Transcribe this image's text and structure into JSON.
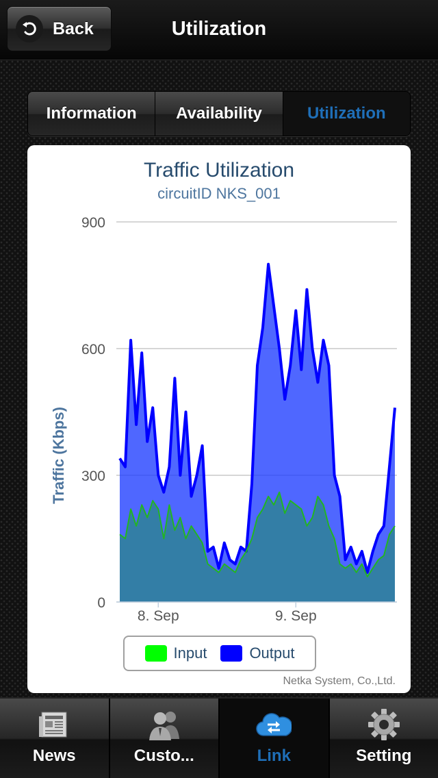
{
  "header": {
    "back_label": "Back",
    "title": "Utilization"
  },
  "segments": [
    {
      "label": "Information",
      "active": false
    },
    {
      "label": "Availability",
      "active": false
    },
    {
      "label": "Utilization",
      "active": true
    }
  ],
  "chart": {
    "credits": "Netka System, Co.,Ltd."
  },
  "chart_data": {
    "type": "area",
    "title": "Traffic Utilization",
    "subtitle": "circuitID NKS_001",
    "ylabel": "Traffic (Kbps)",
    "xlabel": "",
    "ylim": [
      0,
      900
    ],
    "yticks": [
      "0",
      "300",
      "600",
      "900"
    ],
    "xticks": [
      "8. Sep",
      "9. Sep"
    ],
    "xtick_positions": [
      0.14,
      0.64
    ],
    "grid": true,
    "legend_position": "bottom-center",
    "x": [
      0.0,
      0.02,
      0.04,
      0.06,
      0.08,
      0.1,
      0.12,
      0.14,
      0.16,
      0.18,
      0.2,
      0.22,
      0.24,
      0.26,
      0.28,
      0.3,
      0.32,
      0.34,
      0.36,
      0.38,
      0.4,
      0.42,
      0.44,
      0.46,
      0.48,
      0.5,
      0.52,
      0.54,
      0.56,
      0.58,
      0.6,
      0.62,
      0.64,
      0.66,
      0.68,
      0.7,
      0.72,
      0.74,
      0.76,
      0.78,
      0.8,
      0.82,
      0.84,
      0.86,
      0.88,
      0.9,
      0.92,
      0.94,
      0.96,
      0.98,
      1.0
    ],
    "series": [
      {
        "name": "Input",
        "color": "#00ff00",
        "values": [
          160,
          150,
          220,
          180,
          230,
          200,
          240,
          220,
          150,
          230,
          170,
          200,
          150,
          180,
          160,
          140,
          90,
          80,
          70,
          90,
          80,
          70,
          100,
          120,
          150,
          200,
          220,
          250,
          230,
          260,
          210,
          240,
          230,
          220,
          180,
          200,
          250,
          230,
          180,
          150,
          90,
          80,
          90,
          70,
          90,
          60,
          80,
          100,
          110,
          160,
          180
        ]
      },
      {
        "name": "Output",
        "color": "#0000ff",
        "values": [
          340,
          320,
          620,
          420,
          590,
          380,
          460,
          300,
          260,
          320,
          530,
          300,
          450,
          250,
          300,
          370,
          120,
          130,
          80,
          140,
          100,
          90,
          130,
          120,
          280,
          560,
          650,
          800,
          700,
          600,
          480,
          560,
          690,
          550,
          740,
          600,
          520,
          620,
          560,
          300,
          250,
          100,
          130,
          90,
          120,
          70,
          120,
          160,
          180,
          320,
          460
        ]
      }
    ]
  },
  "tabbar": [
    {
      "label": "News",
      "icon": "newspaper-icon",
      "active": false
    },
    {
      "label": "Custo...",
      "icon": "customers-icon",
      "active": false
    },
    {
      "label": "Link",
      "icon": "link-cloud-icon",
      "active": true
    },
    {
      "label": "Setting",
      "icon": "gear-icon",
      "active": false
    }
  ]
}
